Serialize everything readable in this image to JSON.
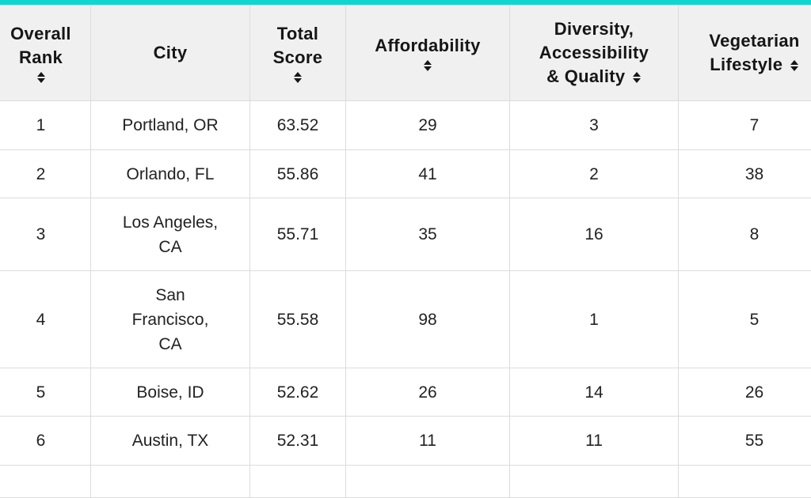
{
  "accent_color": "#13d4cf",
  "header_bg": "#f0f0f0",
  "columns": [
    {
      "key": "rank",
      "label": "Overall Rank",
      "sortable": true
    },
    {
      "key": "city",
      "label": "City",
      "sortable": false
    },
    {
      "key": "total_score",
      "label": "Total Score",
      "sortable": true
    },
    {
      "key": "affordability",
      "label": "Affordability",
      "sortable": true
    },
    {
      "key": "diversity",
      "label": "Diversity, Accessibility & Quality",
      "sortable": true
    },
    {
      "key": "vegetarian",
      "label": "Vegetarian Lifestyle",
      "sortable": true
    }
  ],
  "header": {
    "rank_line1": "Overall",
    "rank_line2": "Rank",
    "city": "City",
    "score_line1": "Total",
    "score_line2": "Score",
    "affordability": "Affordability",
    "diversity_line1": "Diversity,",
    "diversity_line2": "Accessibility",
    "diversity_line3": "& Quality",
    "veg_line1": "Vegetarian",
    "veg_line2": "Lifestyle",
    "sort_icon": "sort-updown-icon"
  },
  "rows": [
    {
      "rank": "1",
      "city": "Portland, OR",
      "total_score": "63.52",
      "affordability": "29",
      "diversity": "3",
      "vegetarian": "7"
    },
    {
      "rank": "2",
      "city": "Orlando, FL",
      "total_score": "55.86",
      "affordability": "41",
      "diversity": "2",
      "vegetarian": "38"
    },
    {
      "rank": "3",
      "city": "Los Angeles, CA",
      "total_score": "55.71",
      "affordability": "35",
      "diversity": "16",
      "vegetarian": "8"
    },
    {
      "rank": "4",
      "city": "San Francisco, CA",
      "total_score": "55.58",
      "affordability": "98",
      "diversity": "1",
      "vegetarian": "5"
    },
    {
      "rank": "5",
      "city": "Boise, ID",
      "total_score": "52.62",
      "affordability": "26",
      "diversity": "14",
      "vegetarian": "26"
    },
    {
      "rank": "6",
      "city": "Austin, TX",
      "total_score": "52.31",
      "affordability": "11",
      "diversity": "11",
      "vegetarian": "55"
    }
  ]
}
